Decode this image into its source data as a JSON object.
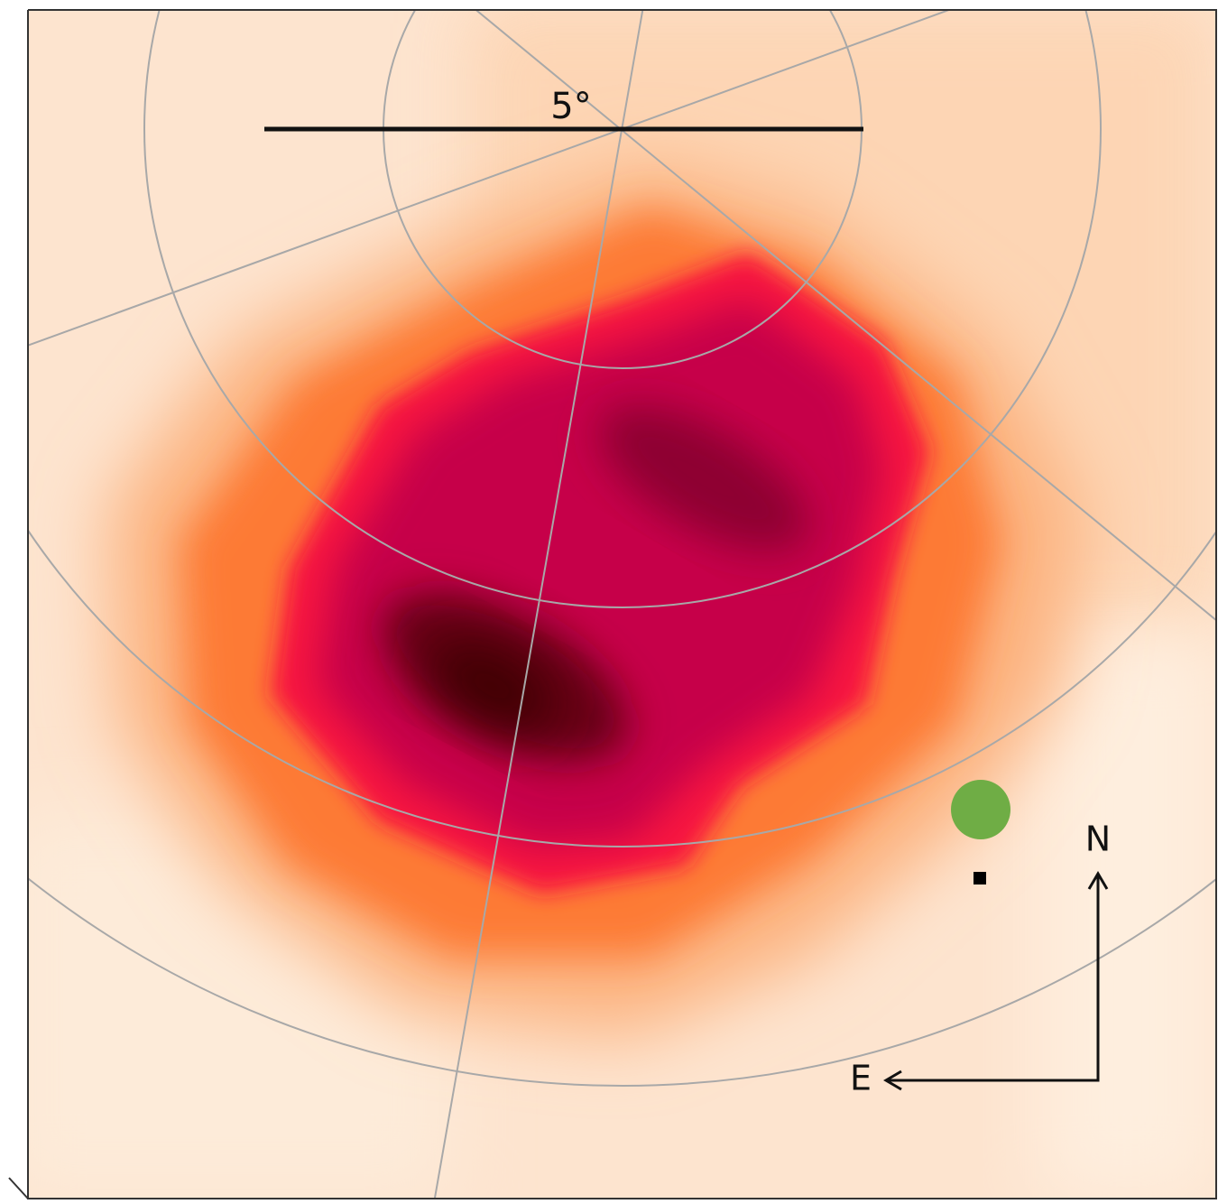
{
  "scale_bar": {
    "label": "5°"
  },
  "compass": {
    "north": "N",
    "east": "E"
  }
}
